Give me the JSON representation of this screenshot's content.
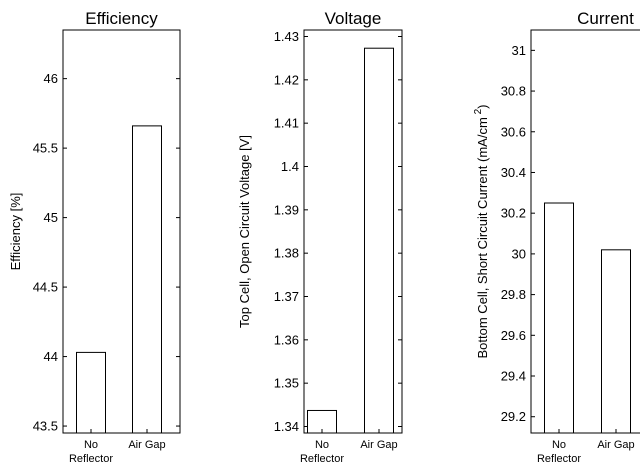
{
  "chart_data": [
    {
      "type": "bar",
      "title": "Efficiency",
      "ylabel": "Efficiency [%]",
      "categories": [
        [
          "No",
          "Reflector"
        ],
        [
          "Air Gap"
        ]
      ],
      "values": [
        44.03,
        45.66
      ],
      "ylim": [
        43.45,
        46.35
      ],
      "yticks": [
        43.5,
        44,
        44.5,
        45,
        45.5,
        46
      ],
      "ytick_labels": [
        "43.5",
        "44",
        "44.5",
        "45",
        "45.5",
        "46"
      ]
    },
    {
      "type": "bar",
      "title": "Voltage",
      "ylabel": "Top Cell, Open Circuit Voltage [V]",
      "categories": [
        [
          "No",
          "Reflector"
        ],
        [
          "Air Gap"
        ]
      ],
      "values": [
        1.3437,
        1.4273
      ],
      "ylim": [
        1.3385,
        1.4315
      ],
      "yticks": [
        1.34,
        1.35,
        1.36,
        1.37,
        1.38,
        1.39,
        1.4,
        1.41,
        1.42,
        1.43
      ],
      "ytick_labels": [
        "1.34",
        "1.35",
        "1.36",
        "1.37",
        "1.38",
        "1.39",
        "1.4",
        "1.41",
        "1.42",
        "1.43"
      ]
    },
    {
      "type": "bar",
      "title": "Current",
      "ylabel": "Bottom Cell, Short Circuit Current (mA/cm",
      "ylabel_sup": "2",
      "ylabel_end": ")",
      "categories": [
        [
          "No",
          "Reflector"
        ],
        [
          "Air Gap"
        ]
      ],
      "values": [
        30.25,
        30.02
      ],
      "ylim": [
        29.12,
        31.1
      ],
      "yticks": [
        29.2,
        29.4,
        29.6,
        29.8,
        30,
        30.2,
        30.4,
        30.6,
        30.8,
        31
      ],
      "ytick_labels": [
        "29.2",
        "29.4",
        "29.6",
        "29.8",
        "30",
        "30.2",
        "30.4",
        "30.6",
        "30.8",
        "31"
      ]
    }
  ]
}
